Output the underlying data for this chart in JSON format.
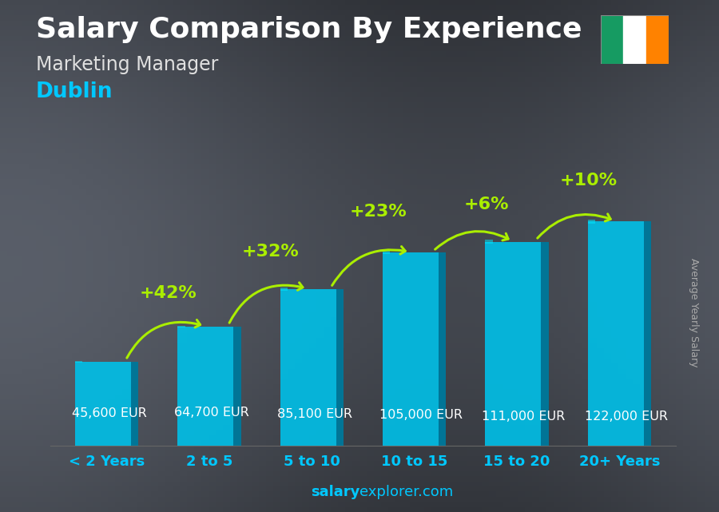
{
  "title": "Salary Comparison By Experience",
  "subtitle": "Marketing Manager",
  "city": "Dublin",
  "ylabel": "Average Yearly Salary",
  "footer_bold": "salary",
  "footer_normal": "explorer.com",
  "categories": [
    "< 2 Years",
    "2 to 5",
    "5 to 10",
    "10 to 15",
    "15 to 20",
    "20+ Years"
  ],
  "values": [
    45600,
    64700,
    85100,
    105000,
    111000,
    122000
  ],
  "value_labels": [
    "45,600 EUR",
    "64,700 EUR",
    "85,100 EUR",
    "105,000 EUR",
    "111,000 EUR",
    "122,000 EUR"
  ],
  "pct_labels": [
    "+42%",
    "+32%",
    "+23%",
    "+6%",
    "+10%"
  ],
  "bar_color": "#00C0E8",
  "bar_edge_color": "#0090B8",
  "bar_dark": "#006080",
  "bg_color": "#4a5a60",
  "title_color": "#ffffff",
  "subtitle_color": "#e0e0e0",
  "city_color": "#00C8FF",
  "label_color": "#ffffff",
  "pct_color": "#AAEE00",
  "arrow_color": "#AAEE00",
  "footer_bold_color": "#00C8FF",
  "footer_normal_color": "#00C8FF",
  "ylabel_color": "#aaaaaa",
  "cat_color": "#00C8FF",
  "ylim": [
    0,
    145000
  ],
  "title_fontsize": 26,
  "subtitle_fontsize": 17,
  "city_fontsize": 19,
  "label_fontsize": 11.5,
  "pct_fontsize": 16,
  "cat_fontsize": 13,
  "flag_green": "#169B62",
  "flag_white": "#FFFFFF",
  "flag_orange": "#FF8200"
}
